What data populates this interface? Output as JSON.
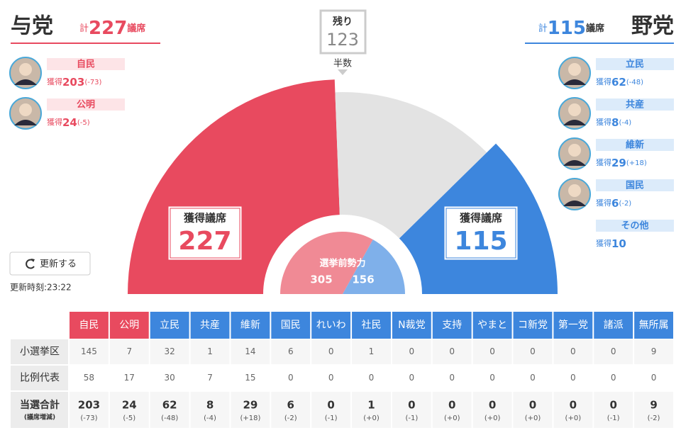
{
  "ruling": {
    "label": "与党",
    "total_prefix": "計",
    "total": 227,
    "total_suffix": "議席",
    "parties": [
      {
        "name": "自民",
        "got": "獲得",
        "seats": 203,
        "change": "(-73)"
      },
      {
        "name": "公明",
        "got": "獲得",
        "seats": 24,
        "change": "(-5)"
      }
    ]
  },
  "opposition": {
    "label": "野党",
    "total_prefix": "計",
    "total": 115,
    "total_suffix": "議席",
    "parties": [
      {
        "name": "立民",
        "got": "獲得",
        "seats": 62,
        "change": "(-48)"
      },
      {
        "name": "共産",
        "got": "獲得",
        "seats": 8,
        "change": "(-4)"
      },
      {
        "name": "維新",
        "got": "獲得",
        "seats": 29,
        "change": "(+18)"
      },
      {
        "name": "国民",
        "got": "獲得",
        "seats": 6,
        "change": "(-2)"
      },
      {
        "name": "その他",
        "got": "獲得",
        "seats": 10
      }
    ]
  },
  "remaining": {
    "label": "残り",
    "value": 123
  },
  "half_label": "半数",
  "center_label": "獲得議席",
  "pre_election": {
    "label": "選挙前勢力",
    "ruling": 305,
    "opposition": 156
  },
  "update_button": "更新する",
  "update_time": "更新時刻:23:22",
  "table": {
    "columns": [
      "自民",
      "公明",
      "立民",
      "共産",
      "維新",
      "国民",
      "れいわ",
      "社民",
      "N裁党",
      "支持",
      "やまと",
      "コ新党",
      "第一党",
      "諸派",
      "無所属"
    ],
    "ruling_count": 2,
    "rows": [
      {
        "label": "小選挙区",
        "values": [
          145,
          7,
          32,
          1,
          14,
          6,
          0,
          1,
          0,
          0,
          0,
          0,
          0,
          0,
          9
        ]
      },
      {
        "label": "比例代表",
        "values": [
          58,
          17,
          30,
          7,
          15,
          0,
          0,
          0,
          0,
          0,
          0,
          0,
          0,
          0,
          0
        ]
      },
      {
        "label": "当選合計",
        "sublabel": "(議席増減)",
        "values": [
          203,
          24,
          62,
          8,
          29,
          6,
          0,
          1,
          0,
          0,
          0,
          0,
          0,
          0,
          9
        ],
        "changes": [
          "(-73)",
          "(-5)",
          "(-48)",
          "(-4)",
          "(+18)",
          "(-2)",
          "(-1)",
          "(+0)",
          "(-1)",
          "(+0)",
          "(+0)",
          "(+0)",
          "(+0)",
          "(-1)",
          "(-2)"
        ]
      }
    ]
  }
}
